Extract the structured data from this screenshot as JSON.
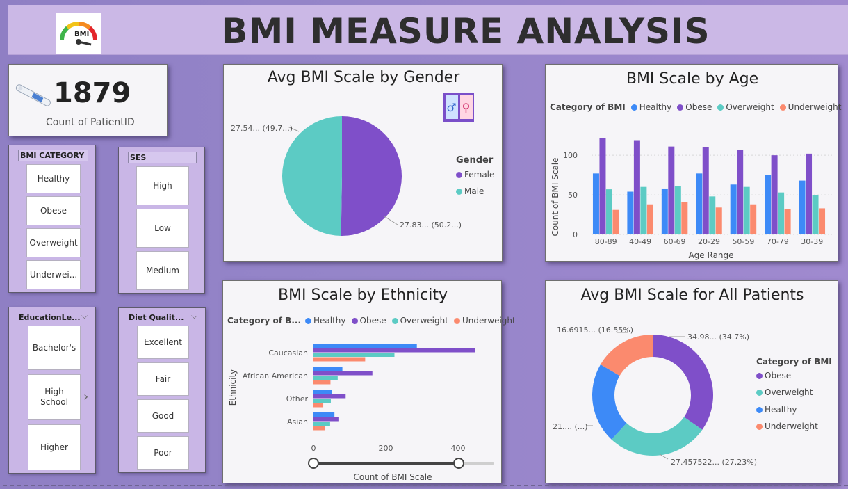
{
  "title": "BMI MEASURE ANALYSIS",
  "logo_text": "BMI",
  "kpi": {
    "value": "1879",
    "label": "Count of PatientID"
  },
  "slicers": {
    "bmi_category": {
      "title": "BMI CATEGORY",
      "items": [
        "Healthy",
        "Obese",
        "Overweight",
        "Underwei..."
      ]
    },
    "ses": {
      "title": "SES",
      "items": [
        "High",
        "Low",
        "Medium"
      ]
    },
    "education": {
      "title": "EducationLe...",
      "items": [
        "Bachelor's",
        "High School",
        "Higher"
      ]
    },
    "diet": {
      "title": "Diet Qualit...",
      "items": [
        "Excellent",
        "Fair",
        "Good",
        "Poor"
      ]
    }
  },
  "colors": {
    "healthy": "#3d8af7",
    "obese": "#7f4fc9",
    "overweight": "#5ccbc4",
    "underweight": "#fb8a6e"
  },
  "gender_chart": {
    "title": "Avg BMI Scale by Gender",
    "legend_title": "Gender",
    "label_male": "27.54... (49.7...)",
    "label_female": "27.83... (50.2...)",
    "chart_data": {
      "type": "pie",
      "categories": [
        "Female",
        "Male"
      ],
      "values": [
        27.83,
        27.54
      ],
      "percents": [
        50.2,
        49.7
      ]
    }
  },
  "age_chart": {
    "title": "BMI Scale by Age",
    "legend_title": "Category of BMI",
    "chart_data": {
      "type": "bar",
      "categories": [
        "80-89",
        "40-49",
        "60-69",
        "20-29",
        "50-59",
        "70-79",
        "30-39"
      ],
      "series": [
        {
          "name": "Healthy",
          "values": [
            77,
            54,
            58,
            77,
            63,
            75,
            68
          ]
        },
        {
          "name": "Obese",
          "values": [
            122,
            119,
            111,
            110,
            107,
            100,
            102
          ]
        },
        {
          "name": "Overweight",
          "values": [
            57,
            60,
            61,
            48,
            60,
            53,
            50
          ]
        },
        {
          "name": "Underweight",
          "values": [
            31,
            38,
            41,
            34,
            38,
            32,
            33
          ]
        }
      ],
      "xlabel": "Age Range",
      "ylabel": "Count of BMI Scale",
      "ylim": [
        0,
        130
      ],
      "yticks": [
        0,
        50,
        100
      ],
      "grid": true
    }
  },
  "ethnicity_chart": {
    "title": "BMI Scale by Ethnicity",
    "legend_title": "Category of B...",
    "chart_data": {
      "type": "bar",
      "orientation": "horizontal",
      "categories": [
        "Caucasian",
        "African American",
        "Other",
        "Asian"
      ],
      "series": [
        {
          "name": "Healthy",
          "values": [
            286,
            80,
            50,
            58
          ]
        },
        {
          "name": "Obese",
          "values": [
            448,
            163,
            89,
            69
          ]
        },
        {
          "name": "Overweight",
          "values": [
            224,
            67,
            48,
            46
          ]
        },
        {
          "name": "Underweight",
          "values": [
            143,
            47,
            27,
            32
          ]
        }
      ],
      "xlabel": "Count of BMI Scale",
      "ylabel": "Ethnicity",
      "xlim": [
        0,
        490
      ],
      "xticks": [
        0,
        200,
        400
      ]
    }
  },
  "all_patients_chart": {
    "title": "Avg BMI Scale for All Patients",
    "legend_title": "Category of BMI",
    "label_obese": "34.98... (34.7%)",
    "label_overweight": "27.457522... (27.23%)",
    "label_healthy": "21.... (...)",
    "label_underweight": "16.6915... (16.55%)",
    "chart_data": {
      "type": "pie",
      "variant": "donut",
      "categories": [
        "Obese",
        "Overweight",
        "Healthy",
        "Underweight"
      ],
      "values": [
        34.98,
        27.46,
        21.7,
        16.69
      ],
      "percents": [
        34.7,
        27.23,
        21.52,
        16.55
      ]
    }
  }
}
